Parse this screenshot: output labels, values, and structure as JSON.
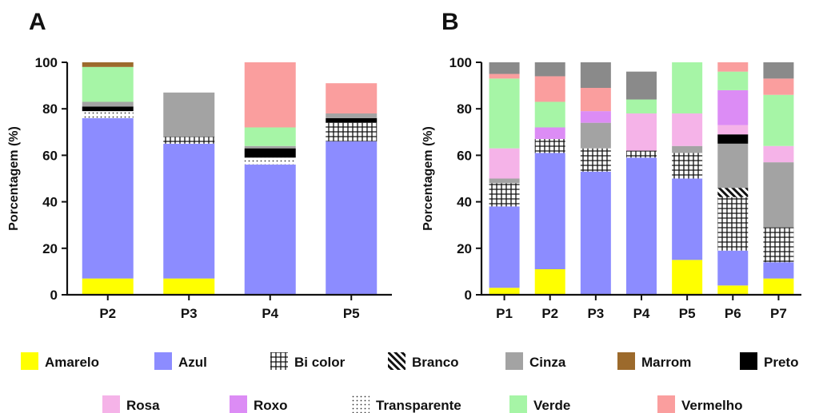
{
  "chart_data": [
    {
      "panel": "A",
      "type": "bar",
      "stacked": true,
      "ylabel": "Porcentagem (%)",
      "xlabel": "",
      "ylim": [
        0,
        100
      ],
      "yticks": [
        "0",
        "20",
        "40",
        "60",
        "80",
        "100"
      ],
      "categories": [
        "P2",
        "P3",
        "P4",
        "P5"
      ],
      "series": [
        {
          "name": "Amarelo",
          "values": [
            7,
            7,
            0,
            0
          ]
        },
        {
          "name": "Azul",
          "values": [
            69,
            58,
            56,
            66
          ]
        },
        {
          "name": "Bi color",
          "values": [
            0,
            3,
            0,
            8
          ]
        },
        {
          "name": "Branco",
          "values": [
            0,
            0,
            0,
            0
          ]
        },
        {
          "name": "Transparente",
          "values": [
            3,
            0,
            3,
            0
          ]
        },
        {
          "name": "Preto",
          "values": [
            2,
            0,
            4,
            2
          ]
        },
        {
          "name": "Cinza",
          "values": [
            2,
            19,
            1,
            2
          ]
        },
        {
          "name": "Rosa",
          "values": [
            0,
            0,
            0,
            0
          ]
        },
        {
          "name": "Roxo",
          "values": [
            0,
            0,
            0,
            0
          ]
        },
        {
          "name": "Verde",
          "values": [
            15,
            0,
            8,
            0
          ]
        },
        {
          "name": "Vermelho",
          "values": [
            0,
            0,
            28,
            13
          ]
        },
        {
          "name": "Marrom",
          "values": [
            2,
            0,
            0,
            0
          ]
        }
      ]
    },
    {
      "panel": "B",
      "type": "bar",
      "stacked": true,
      "ylabel": "Porcentagem (%)",
      "xlabel": "",
      "ylim": [
        0,
        100
      ],
      "yticks": [
        "0",
        "20",
        "40",
        "60",
        "80",
        "100"
      ],
      "categories": [
        "P1",
        "P2",
        "P3",
        "P4",
        "P5",
        "P6",
        "P7"
      ],
      "series": [
        {
          "name": "Amarelo",
          "values": [
            3,
            11,
            0,
            0,
            15,
            4,
            7
          ]
        },
        {
          "name": "Azul",
          "values": [
            35,
            50,
            53,
            59,
            35,
            15,
            7
          ]
        },
        {
          "name": "Bi color",
          "values": [
            10,
            6,
            10,
            3,
            11,
            23,
            15
          ]
        },
        {
          "name": "Branco",
          "values": [
            0,
            0,
            0,
            0,
            0,
            4,
            0
          ]
        },
        {
          "name": "Transparente",
          "values": [
            0,
            0,
            0,
            0,
            0,
            0,
            0
          ]
        },
        {
          "name": "Cinza",
          "values": [
            2,
            0,
            11,
            0,
            3,
            19,
            28
          ]
        },
        {
          "name": "Preto",
          "values": [
            0,
            0,
            0,
            0,
            0,
            4,
            0
          ]
        },
        {
          "name": "Rosa",
          "values": [
            13,
            0,
            0,
            16,
            14,
            4,
            7
          ]
        },
        {
          "name": "Roxo",
          "values": [
            0,
            5,
            5,
            0,
            0,
            15,
            0
          ]
        },
        {
          "name": "Verde",
          "values": [
            30,
            11,
            0,
            6,
            22,
            8,
            22
          ]
        },
        {
          "name": "Vermelho",
          "values": [
            2,
            11,
            10,
            0,
            0,
            4,
            7
          ]
        },
        {
          "name": "Cinza",
          "values": [
            5,
            6,
            11,
            12,
            0,
            0,
            7
          ]
        }
      ]
    }
  ],
  "legend": [
    {
      "name": "Amarelo",
      "key": "Amarelo"
    },
    {
      "name": "Azul",
      "key": "Azul"
    },
    {
      "name": "Bi color",
      "key": "Bi color"
    },
    {
      "name": "Branco",
      "key": "Branco"
    },
    {
      "name": "Cinza",
      "key": "Cinza"
    },
    {
      "name": "Marrom",
      "key": "Marrom"
    },
    {
      "name": "Preto",
      "key": "Preto"
    },
    {
      "name": "Rosa",
      "key": "Rosa"
    },
    {
      "name": "Roxo",
      "key": "Roxo"
    },
    {
      "name": "Transparente",
      "key": "Transparente"
    },
    {
      "name": "Verde",
      "key": "Verde"
    },
    {
      "name": "Vermelho",
      "key": "Vermelho"
    }
  ],
  "styles": {
    "Amarelo": {
      "fill": "#ffff00"
    },
    "Azul": {
      "fill": "#8c8cff"
    },
    "Bi color": {
      "fill": "#ffffff",
      "pattern": "grid"
    },
    "Branco": {
      "fill": "#ffffff",
      "pattern": "diagonal"
    },
    "Cinza": {
      "fill": "#a3a3a3"
    },
    "Marrom": {
      "fill": "#9c6a2c"
    },
    "Preto": {
      "fill": "#000000"
    },
    "Rosa": {
      "fill": "#f5b3e8"
    },
    "Roxo": {
      "fill": "#dc8cf5"
    },
    "Transparente": {
      "fill": "#ffffff",
      "pattern": "dots"
    },
    "Verde": {
      "fill": "#a6f5a6"
    },
    "Vermelho": {
      "fill": "#fa9e9e"
    }
  },
  "top_segment_color": "#8a8a8a"
}
